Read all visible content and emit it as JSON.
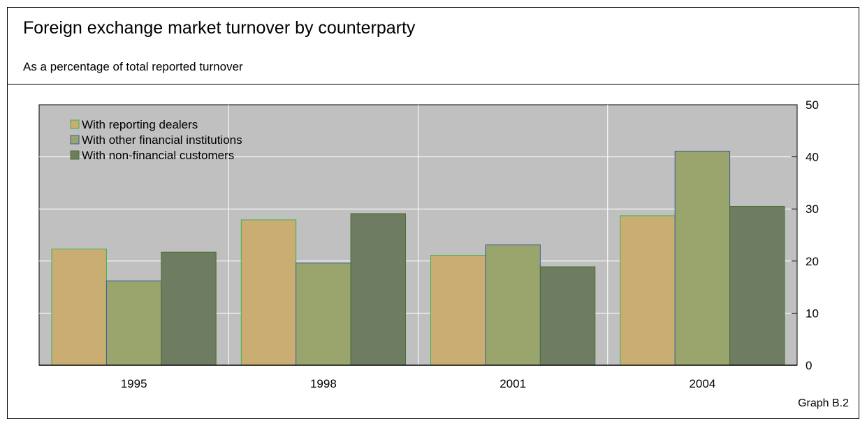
{
  "header": {
    "title": "Foreign exchange market turnover by counterparty",
    "subtitle": "As a percentage of total reported turnover"
  },
  "footer": {
    "caption": "Graph B.2"
  },
  "colors": {
    "plot_background": "#c0c0c0",
    "grid": "#ffffff",
    "series": [
      "#c9ad72",
      "#99a56d",
      "#6e7c62"
    ],
    "borders": [
      "#3ab34a",
      "#3c5e99",
      "#4a6f30"
    ]
  },
  "chart_data": {
    "type": "bar",
    "categories": [
      "1995",
      "1998",
      "2001",
      "2004"
    ],
    "series": [
      {
        "name": "With reporting dealers",
        "values": [
          22.3,
          27.9,
          21.1,
          28.7
        ]
      },
      {
        "name": "With other financial institutions",
        "values": [
          16.2,
          19.6,
          23.1,
          41.1
        ]
      },
      {
        "name": "With non-financial customers",
        "values": [
          21.7,
          29.1,
          18.9,
          30.5
        ]
      }
    ],
    "ylim": [
      0,
      50
    ],
    "yticks": [
      "0",
      "10",
      "20",
      "30",
      "40",
      "50"
    ],
    "y_axis_side": "right",
    "grid": true,
    "legend_position": "top-left"
  }
}
